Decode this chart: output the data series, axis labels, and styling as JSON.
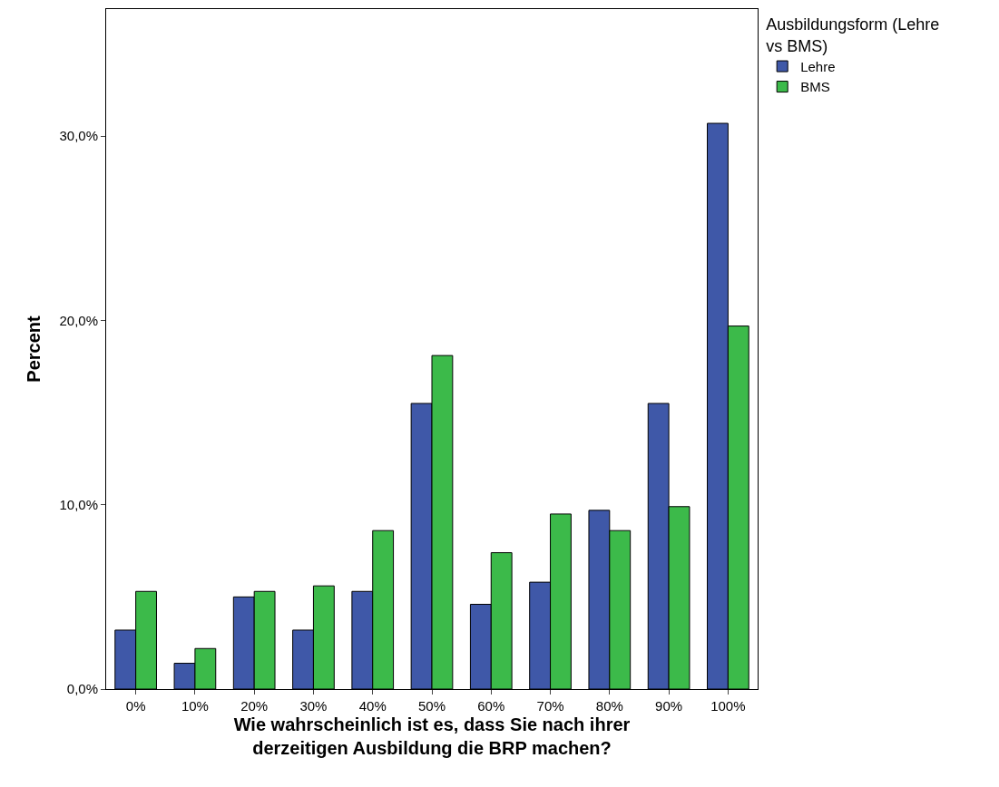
{
  "chart_data": {
    "type": "bar",
    "xlabel": "Wie wahrscheinlich ist es, dass Sie nach ihrer derzeitigen Ausbildung die BRP machen?",
    "ylabel": "Percent",
    "legend_title": "Ausbildungsform (Lehre vs BMS)",
    "legend": "right",
    "categories": [
      "0%",
      "10%",
      "20%",
      "30%",
      "40%",
      "50%",
      "60%",
      "70%",
      "80%",
      "90%",
      "100%"
    ],
    "series": [
      {
        "name": "Lehre",
        "color": "#3f58a8",
        "values": [
          3.2,
          1.4,
          5.0,
          3.2,
          5.3,
          15.5,
          4.6,
          5.8,
          9.7,
          15.5,
          30.7
        ]
      },
      {
        "name": "BMS",
        "color": "#3cba4a",
        "values": [
          5.3,
          2.2,
          5.3,
          5.6,
          8.6,
          18.1,
          7.4,
          9.5,
          8.6,
          9.9,
          19.7
        ]
      }
    ],
    "ylim": [
      0,
      36.9
    ],
    "yticks": [
      {
        "value": 0,
        "label": "0,0%"
      },
      {
        "value": 10,
        "label": "10,0%"
      },
      {
        "value": 20,
        "label": "20,0%"
      },
      {
        "value": 30,
        "label": "30,0%"
      }
    ],
    "grid": false
  }
}
